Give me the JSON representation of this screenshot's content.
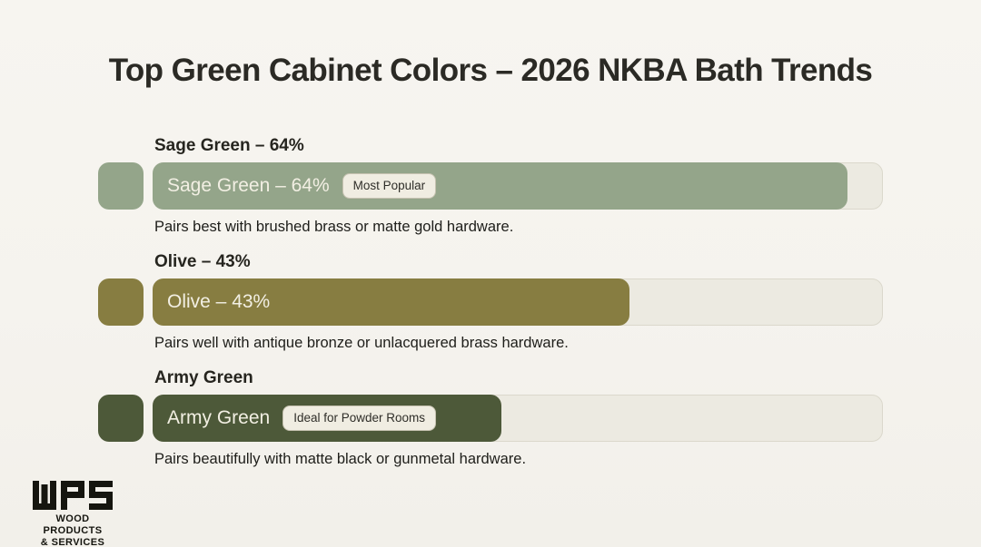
{
  "title": "Top Green Cabinet Colors – 2026 NKBA Bath Trends",
  "colors": {
    "page_bg": "#f5f3ee",
    "track_bg": "#eceae1",
    "track_border": "#dbd8cc",
    "badge_bg": "#f0ede2",
    "badge_text": "#2f2e29",
    "bar_label_text": "#f2efe3",
    "heading_text": "#26251f",
    "title_text": "#2b2a25",
    "sage_green": "#94a58a",
    "olive": "#877d41",
    "army_green": "#4d5939"
  },
  "chart_data": {
    "type": "bar",
    "orientation": "horizontal",
    "title": "Top Green Cabinet Colors – 2026 NKBA Bath Trends",
    "xlabel": "",
    "ylabel": "",
    "axis_ticks_visible": false,
    "grid": false,
    "legend": "none",
    "categories": [
      "Sage Green",
      "Olive",
      "Army Green"
    ],
    "values_pct": [
      64,
      43,
      null
    ],
    "items": [
      {
        "heading": "Sage Green – 64%",
        "bar_text": "Sage Green – 64%",
        "value_pct": 64,
        "fill_pct": 95.4,
        "color": "#94a58a",
        "badge": "Most Popular",
        "description": "Pairs best with brushed brass or matte gold hardware."
      },
      {
        "heading": "Olive – 43%",
        "bar_text": "Olive – 43%",
        "value_pct": 43,
        "fill_pct": 65.5,
        "color": "#877d41",
        "badge": null,
        "description": "Pairs well with antique bronze or unlacquered brass hardware."
      },
      {
        "heading": "Army Green",
        "bar_text": "Army Green",
        "value_pct": null,
        "fill_pct": 47.9,
        "color": "#4d5939",
        "badge": "Ideal for Powder Rooms",
        "description": "Pairs beautifully with matte black or gunmetal hardware."
      }
    ]
  },
  "logo": {
    "acronym": "WPS",
    "line1": "WOOD PRODUCTS",
    "line2": "& SERVICES"
  }
}
